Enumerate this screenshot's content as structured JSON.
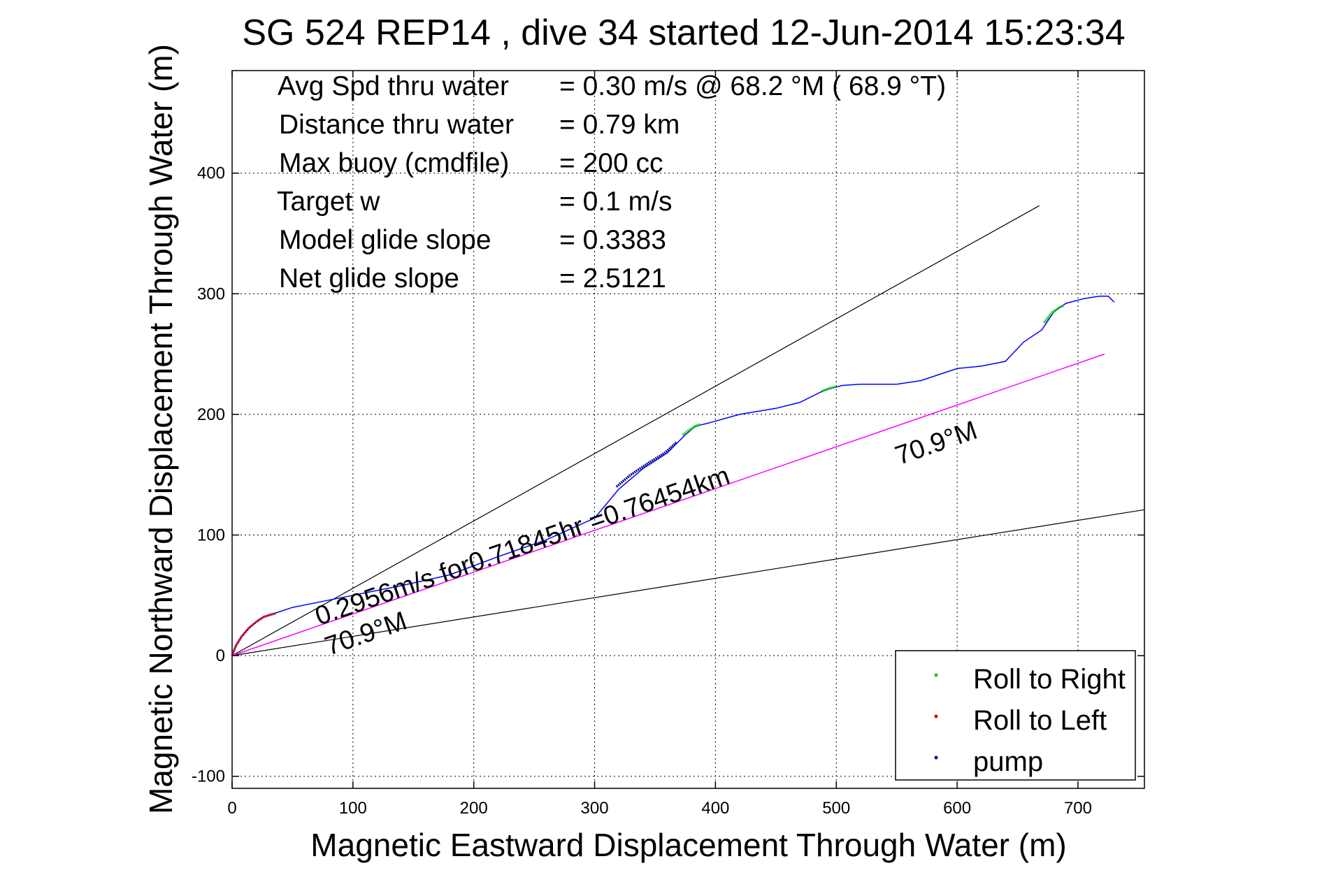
{
  "chart_data": {
    "type": "line",
    "title": "SG 524   REP14  , dive 34 started 12-Jun-2014 15:23:34",
    "xlabel": "Magnetic Eastward Displacement Through Water (m)",
    "ylabel": "Magnetic Northward Displacement Through Water (m)",
    "xlim": [
      0,
      755
    ],
    "ylim": [
      -110,
      485
    ],
    "xticks": [
      0,
      100,
      200,
      300,
      400,
      500,
      600,
      700
    ],
    "yticks": [
      -100,
      0,
      100,
      200,
      300,
      400
    ],
    "grid": true,
    "colors": {
      "track": "#0000ff",
      "roll_right": "#00cc00",
      "roll_left": "#cc0000",
      "pump": "#000080",
      "heading_line": "#ff00ff",
      "reference_lines": "#000000"
    },
    "stats": [
      {
        "label": "Avg Spd thru water",
        "value": "=  0.30 m/s @  68.2 °M ( 68.9 °T)"
      },
      {
        "label": "Distance thru water",
        "value": "=  0.79 km"
      },
      {
        "label": "Max buoy (cmdfile)",
        "value": "= 200 cc"
      },
      {
        "label": "Target w",
        "value": "= 0.1 m/s"
      },
      {
        "label": "Model glide slope",
        "value": "= 0.3383"
      },
      {
        "label": "Net glide slope",
        "value": "= 2.5121"
      }
    ],
    "track": [
      [
        0,
        0
      ],
      [
        3,
        8
      ],
      [
        8,
        16
      ],
      [
        14,
        23
      ],
      [
        20,
        28
      ],
      [
        26,
        32
      ],
      [
        32,
        34
      ],
      [
        38,
        36
      ],
      [
        50,
        40
      ],
      [
        70,
        44
      ],
      [
        100,
        50
      ],
      [
        140,
        58
      ],
      [
        180,
        67
      ],
      [
        220,
        82
      ],
      [
        260,
        96
      ],
      [
        300,
        114
      ],
      [
        320,
        138
      ],
      [
        340,
        155
      ],
      [
        360,
        168
      ],
      [
        375,
        183
      ],
      [
        383,
        190
      ],
      [
        395,
        193
      ],
      [
        420,
        200
      ],
      [
        450,
        205
      ],
      [
        470,
        210
      ],
      [
        490,
        220
      ],
      [
        505,
        224
      ],
      [
        520,
        225
      ],
      [
        550,
        225
      ],
      [
        570,
        228
      ],
      [
        600,
        238
      ],
      [
        620,
        240
      ],
      [
        640,
        244
      ],
      [
        655,
        260
      ],
      [
        670,
        270
      ],
      [
        680,
        285
      ],
      [
        690,
        292
      ],
      [
        705,
        296
      ],
      [
        718,
        298
      ],
      [
        725,
        298
      ],
      [
        730,
        293
      ]
    ],
    "roll_right_segments": [
      [
        [
          373,
          183
        ],
        [
          378,
          187
        ],
        [
          383,
          190
        ],
        [
          388,
          192
        ]
      ],
      [
        [
          488,
          219
        ],
        [
          495,
          222
        ],
        [
          500,
          223
        ]
      ],
      [
        [
          672,
          276
        ],
        [
          678,
          284
        ],
        [
          685,
          289
        ],
        [
          688,
          290
        ]
      ]
    ],
    "roll_left_segments": [
      [
        [
          0,
          0
        ],
        [
          3,
          8
        ],
        [
          8,
          16
        ],
        [
          14,
          23
        ],
        [
          20,
          28
        ],
        [
          26,
          32
        ],
        [
          32,
          34
        ],
        [
          36,
          35
        ]
      ]
    ],
    "pump_segments": [
      [
        [
          318,
          140
        ],
        [
          330,
          150
        ],
        [
          345,
          160
        ],
        [
          358,
          168
        ],
        [
          368,
          177
        ]
      ]
    ],
    "heading_line": {
      "start": [
        0,
        0
      ],
      "end": [
        722,
        250
      ]
    },
    "reference_lines": [
      {
        "start": [
          0,
          0
        ],
        "end": [
          668,
          373
        ]
      },
      {
        "start": [
          0,
          0
        ],
        "end": [
          755,
          121
        ]
      }
    ],
    "annotations": [
      {
        "text": "0.2956m/s for0.71845hr =0.76454km",
        "x": 72,
        "y": 25,
        "angle_deg": 19.1
      },
      {
        "text": "70.9°M",
        "x": 80,
        "y": 0,
        "angle_deg": 19.1
      },
      {
        "text": "70.9°M",
        "x": 552,
        "y": 158,
        "angle_deg": 19.1
      }
    ],
    "legend": {
      "position": "lower-right",
      "entries": [
        "Roll to Right",
        "Roll to Left",
        "pump"
      ]
    }
  }
}
